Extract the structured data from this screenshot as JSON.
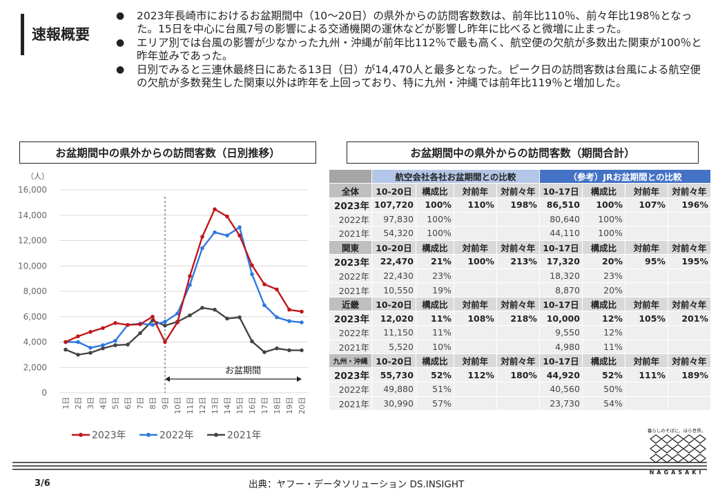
{
  "header": {
    "title": "速報概要",
    "bullets": [
      "2023年長崎市におけるお盆期間中（10〜20日）の県外からの訪問客数数は、前年比110％、前々年比198％となった。15日を中心に台風7号の影響による交通機関の運休などが影響し昨年に比べると微増に止まった。",
      "エリア別では台風の影響が少なかった九州・沖縄が前年比112％で最も高く、航空便の欠航が多数出た関東が100％と昨年並みであった。",
      "日別でみると三連休最終日にあたる13日（日）が14,470人と最多となった。ピーク日の訪問客数は台風による航空便の欠航が多数発生した関東以外は昨年を上回っており、特に九州・沖縄では前年比119％と増加した。"
    ]
  },
  "chart_title": "お盆期間中の県外からの訪問客数（日別推移）",
  "table_title": "お盆期間中の県外からの訪問客数（期間合計）",
  "chart_data": {
    "type": "line",
    "ylabel": "（人）",
    "ylim": [
      0,
      16000
    ],
    "yticks": [
      "0",
      "2,000",
      "4,000",
      "6,000",
      "8,000",
      "10,000",
      "12,000",
      "14,000",
      "16,000"
    ],
    "categories": [
      "1日",
      "2日",
      "3日",
      "4日",
      "5日",
      "6日",
      "7日",
      "8日",
      "9日",
      "10日",
      "11日",
      "12日",
      "13日",
      "14日",
      "15日",
      "16日",
      "17日",
      "18日",
      "19日",
      "20日"
    ],
    "series": [
      {
        "name": "2023年",
        "color": "#c0161c",
        "values": [
          4000,
          4450,
          4800,
          5100,
          5500,
          5350,
          5400,
          6000,
          4000,
          5550,
          9200,
          12300,
          14470,
          13900,
          12400,
          10050,
          8550,
          8150,
          6550,
          6400
        ]
      },
      {
        "name": "2022年",
        "color": "#2e78e0",
        "values": [
          4000,
          4000,
          3550,
          3750,
          4100,
          5350,
          5450,
          5350,
          5600,
          6250,
          8500,
          11400,
          12650,
          12400,
          13050,
          9350,
          6900,
          5950,
          5650,
          5550
        ]
      },
      {
        "name": "2021年",
        "color": "#444444",
        "values": [
          3400,
          3000,
          3150,
          3500,
          3750,
          3800,
          4700,
          5700,
          5300,
          5600,
          6100,
          6700,
          6550,
          5850,
          5950,
          4050,
          3200,
          3500,
          3350,
          3350
        ]
      }
    ],
    "annotation": {
      "label": "お盆期間",
      "from": "9日",
      "to": "20日"
    },
    "legend_position": "bottom"
  },
  "table": {
    "group_air": "航空会社各社お盆期間との比較",
    "group_jr": "（参考）JRお盆期間との比較",
    "sections": [
      {
        "region": "全体",
        "period_air": "10-20日",
        "period_jr": "10-17日",
        "col_ratio": "構成比",
        "col_yoy": "対前年",
        "col_yoy2": "対前々年",
        "rows": [
          {
            "year": "2023年",
            "air": [
              "107,720",
              "100%",
              "110%",
              "198%"
            ],
            "jr": [
              "86,510",
              "100%",
              "107%",
              "196%"
            ]
          },
          {
            "year": "2022年",
            "air": [
              "97,830",
              "100%",
              "",
              ""
            ],
            "jr": [
              "80,640",
              "100%",
              "",
              ""
            ]
          },
          {
            "year": "2021年",
            "air": [
              "54,320",
              "100%",
              "",
              ""
            ],
            "jr": [
              "44,110",
              "100%",
              "",
              ""
            ]
          }
        ]
      },
      {
        "region": "関東",
        "period_air": "10-20日",
        "period_jr": "10-17日",
        "col_ratio": "構成比",
        "col_yoy": "対前年",
        "col_yoy2": "対前々年",
        "rows": [
          {
            "year": "2023年",
            "air": [
              "22,470",
              "21%",
              "100%",
              "213%"
            ],
            "jr": [
              "17,320",
              "20%",
              "95%",
              "195%"
            ]
          },
          {
            "year": "2022年",
            "air": [
              "22,430",
              "23%",
              "",
              ""
            ],
            "jr": [
              "18,320",
              "23%",
              "",
              ""
            ]
          },
          {
            "year": "2021年",
            "air": [
              "10,550",
              "19%",
              "",
              ""
            ],
            "jr": [
              "8,870",
              "20%",
              "",
              ""
            ]
          }
        ]
      },
      {
        "region": "近畿",
        "period_air": "10-20日",
        "period_jr": "10-17日",
        "col_ratio": "構成比",
        "col_yoy": "対前年",
        "col_yoy2": "対前々年",
        "rows": [
          {
            "year": "2023年",
            "air": [
              "12,020",
              "11%",
              "108%",
              "218%"
            ],
            "jr": [
              "10,000",
              "12%",
              "105%",
              "201%"
            ]
          },
          {
            "year": "2022年",
            "air": [
              "11,150",
              "11%",
              "",
              ""
            ],
            "jr": [
              "9,550",
              "12%",
              "",
              ""
            ]
          },
          {
            "year": "2021年",
            "air": [
              "5,520",
              "10%",
              "",
              ""
            ],
            "jr": [
              "4,980",
              "11%",
              "",
              ""
            ]
          }
        ]
      },
      {
        "region": "九州・沖縄",
        "period_air": "10-20日",
        "period_jr": "10-17日",
        "col_ratio": "構成比",
        "col_yoy": "対前年",
        "col_yoy2": "対前々年",
        "rows": [
          {
            "year": "2023年",
            "air": [
              "55,730",
              "52%",
              "112%",
              "180%"
            ],
            "jr": [
              "44,920",
              "52%",
              "111%",
              "189%"
            ]
          },
          {
            "year": "2022年",
            "air": [
              "49,880",
              "51%",
              "",
              ""
            ],
            "jr": [
              "40,560",
              "50%",
              "",
              ""
            ]
          },
          {
            "year": "2021年",
            "air": [
              "30,990",
              "57%",
              "",
              ""
            ],
            "jr": [
              "23,730",
              "54%",
              "",
              ""
            ]
          }
        ]
      }
    ]
  },
  "footer": {
    "page": "3/6",
    "source": "出典：ヤフー・データソリューション DS.INSIGHT"
  },
  "logo": {
    "tagline": "暮らしのそばに、ほら世界。",
    "name": "NAGASAKI"
  }
}
